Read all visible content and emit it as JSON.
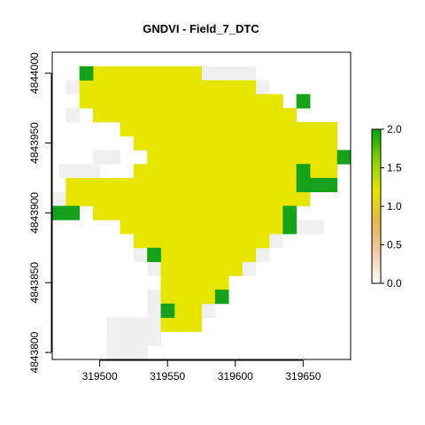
{
  "chart_data": {
    "type": "heatmap",
    "title": "GNDVI - Field_7_DTC",
    "xlabel": "",
    "ylabel": "",
    "xlim": [
      319465,
      319685
    ],
    "ylim": [
      4843795,
      4844015
    ],
    "x_ticks": [
      319500,
      319550,
      319600,
      319650
    ],
    "x_tick_labels": [
      "319500",
      "319550",
      "319600",
      "319650"
    ],
    "y_ticks": [
      4843800,
      4843850,
      4843900,
      4843950,
      4844000
    ],
    "y_tick_labels": [
      "4843800",
      "4843850",
      "4843900",
      "4843950",
      "4844000"
    ],
    "grid": false,
    "cell_size": 10,
    "legend": {
      "position": "right",
      "min": 0.0,
      "max": 2.0,
      "ticks": [
        0.0,
        0.5,
        1.0,
        1.5,
        2.0
      ],
      "tick_labels": [
        "0.0",
        "0.5",
        "1.0",
        "1.5",
        "2.0"
      ],
      "colors": [
        "#ffffff",
        "#f2c9a8",
        "#e6b84a",
        "#e5e500",
        "#8ccf00",
        "#00a600"
      ]
    },
    "colors": {
      "na": "#f0f0f0",
      "value_1_0": "#e5e500",
      "value_2_0": "#16a11a"
    },
    "cells": [
      {
        "x0": 319475,
        "x1": 319485,
        "y0": 4843985,
        "y1": 4843995,
        "value": null
      },
      {
        "x0": 319565,
        "x1": 319615,
        "y0": 4843995,
        "y1": 4844005,
        "value": null
      },
      {
        "x0": 319615,
        "x1": 319625,
        "y0": 4843985,
        "y1": 4843995,
        "value": null
      },
      {
        "x0": 319475,
        "x1": 319485,
        "y0": 4843965,
        "y1": 4843975,
        "value": null
      },
      {
        "x0": 319470,
        "x1": 319500,
        "y0": 4843925,
        "y1": 4843935,
        "value": null
      },
      {
        "x0": 319495,
        "x1": 319515,
        "y0": 4843935,
        "y1": 4843945,
        "value": null
      },
      {
        "x0": 319465,
        "x1": 319475,
        "y0": 4843905,
        "y1": 4843915,
        "value": null
      },
      {
        "x0": 319635,
        "x1": 319665,
        "y0": 4843885,
        "y1": 4843895,
        "value": null
      },
      {
        "x0": 319625,
        "x1": 319635,
        "y0": 4843875,
        "y1": 4843885,
        "value": null
      },
      {
        "x0": 319615,
        "x1": 319625,
        "y0": 4843865,
        "y1": 4843875,
        "value": null
      },
      {
        "x0": 319605,
        "x1": 319615,
        "y0": 4843855,
        "y1": 4843865,
        "value": null
      },
      {
        "x0": 319525,
        "x1": 319535,
        "y0": 4843865,
        "y1": 4843875,
        "value": null
      },
      {
        "x0": 319535,
        "x1": 319545,
        "y0": 4843855,
        "y1": 4843865,
        "value": null
      },
      {
        "x0": 319535,
        "x1": 319545,
        "y0": 4843825,
        "y1": 4843845,
        "value": null
      },
      {
        "x0": 319505,
        "x1": 319545,
        "y0": 4843805,
        "y1": 4843825,
        "value": null
      },
      {
        "x0": 319505,
        "x1": 319535,
        "y0": 4843795,
        "y1": 4843805,
        "value": null
      },
      {
        "x0": 319555,
        "x1": 319565,
        "y0": 4843815,
        "y1": 4843825,
        "value": null
      },
      {
        "x0": 319575,
        "x1": 319585,
        "y0": 4843825,
        "y1": 4843835,
        "value": null
      },
      {
        "x0": 319495,
        "x1": 319575,
        "y0": 4843995,
        "y1": 4844005,
        "value": 1.0
      },
      {
        "x0": 319485,
        "x1": 319615,
        "y0": 4843985,
        "y1": 4843995,
        "value": 1.0
      },
      {
        "x0": 319485,
        "x1": 319635,
        "y0": 4843975,
        "y1": 4843985,
        "value": 1.0
      },
      {
        "x0": 319495,
        "x1": 319645,
        "y0": 4843965,
        "y1": 4843975,
        "value": 1.0
      },
      {
        "x0": 319515,
        "x1": 319675,
        "y0": 4843955,
        "y1": 4843965,
        "value": 1.0
      },
      {
        "x0": 319525,
        "x1": 319675,
        "y0": 4843945,
        "y1": 4843955,
        "value": 1.0
      },
      {
        "x0": 319535,
        "x1": 319675,
        "y0": 4843935,
        "y1": 4843945,
        "value": 1.0
      },
      {
        "x0": 319525,
        "x1": 319675,
        "y0": 4843925,
        "y1": 4843935,
        "value": 1.0
      },
      {
        "x0": 319475,
        "x1": 319655,
        "y0": 4843915,
        "y1": 4843925,
        "value": 1.0
      },
      {
        "x0": 319475,
        "x1": 319655,
        "y0": 4843905,
        "y1": 4843915,
        "value": 1.0
      },
      {
        "x0": 319495,
        "x1": 319635,
        "y0": 4843895,
        "y1": 4843905,
        "value": 1.0
      },
      {
        "x0": 319515,
        "x1": 319635,
        "y0": 4843885,
        "y1": 4843895,
        "value": 1.0
      },
      {
        "x0": 319525,
        "x1": 319625,
        "y0": 4843875,
        "y1": 4843885,
        "value": 1.0
      },
      {
        "x0": 319535,
        "x1": 319615,
        "y0": 4843865,
        "y1": 4843875,
        "value": 1.0
      },
      {
        "x0": 319545,
        "x1": 319605,
        "y0": 4843855,
        "y1": 4843865,
        "value": 1.0
      },
      {
        "x0": 319545,
        "x1": 319595,
        "y0": 4843845,
        "y1": 4843855,
        "value": 1.0
      },
      {
        "x0": 319545,
        "x1": 319585,
        "y0": 4843835,
        "y1": 4843845,
        "value": 1.0
      },
      {
        "x0": 319545,
        "x1": 319575,
        "y0": 4843825,
        "y1": 4843835,
        "value": 1.0
      },
      {
        "x0": 319545,
        "x1": 319575,
        "y0": 4843815,
        "y1": 4843825,
        "value": 1.0
      },
      {
        "x0": 319485,
        "x1": 319495,
        "y0": 4843995,
        "y1": 4844005,
        "value": 2.0
      },
      {
        "x0": 319645,
        "x1": 319655,
        "y0": 4843975,
        "y1": 4843985,
        "value": 2.0
      },
      {
        "x0": 319675,
        "x1": 319685,
        "y0": 4843935,
        "y1": 4843945,
        "value": 2.0
      },
      {
        "x0": 319645,
        "x1": 319655,
        "y0": 4843925,
        "y1": 4843935,
        "value": 2.0
      },
      {
        "x0": 319645,
        "x1": 319675,
        "y0": 4843915,
        "y1": 4843925,
        "value": 2.0
      },
      {
        "x0": 319465,
        "x1": 319485,
        "y0": 4843895,
        "y1": 4843905,
        "value": 2.0
      },
      {
        "x0": 319635,
        "x1": 319645,
        "y0": 4843895,
        "y1": 4843905,
        "value": 2.0
      },
      {
        "x0": 319635,
        "x1": 319645,
        "y0": 4843885,
        "y1": 4843895,
        "value": 2.0
      },
      {
        "x0": 319535,
        "x1": 319545,
        "y0": 4843865,
        "y1": 4843875,
        "value": 2.0
      },
      {
        "x0": 319585,
        "x1": 319595,
        "y0": 4843835,
        "y1": 4843845,
        "value": 2.0
      },
      {
        "x0": 319545,
        "x1": 319555,
        "y0": 4843825,
        "y1": 4843835,
        "value": 2.0
      }
    ]
  }
}
